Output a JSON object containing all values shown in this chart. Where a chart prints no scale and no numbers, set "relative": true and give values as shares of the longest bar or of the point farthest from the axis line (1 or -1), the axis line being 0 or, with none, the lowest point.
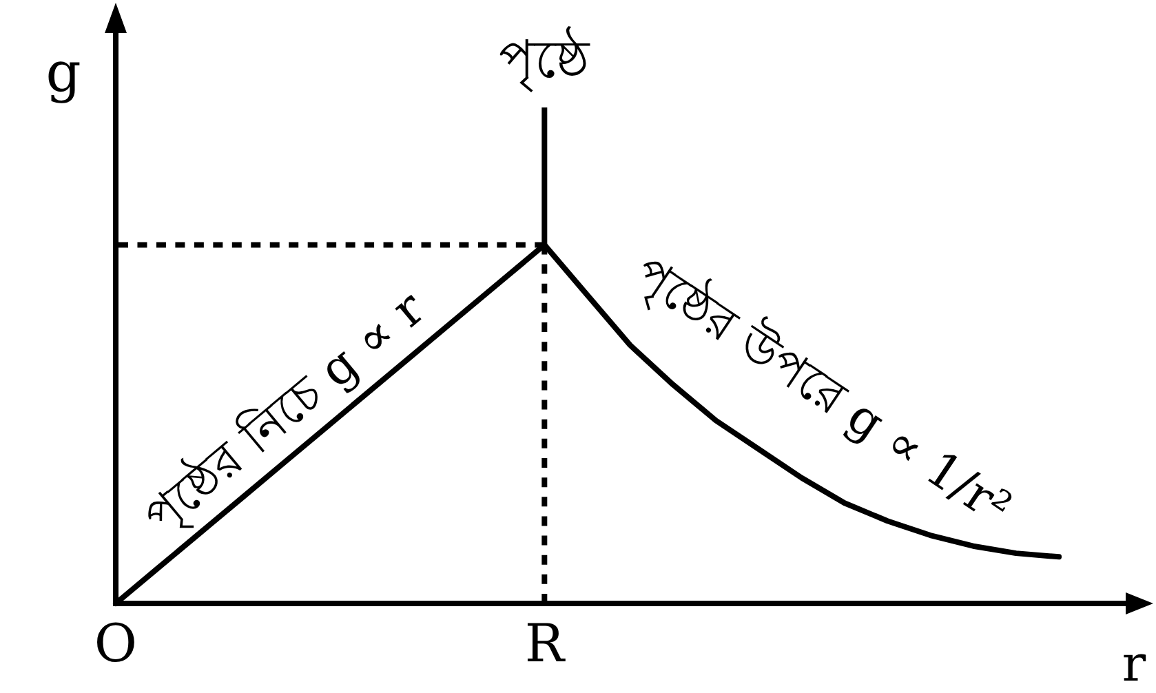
{
  "chart_data": {
    "type": "line",
    "xlabel": "r",
    "ylabel": "g",
    "relative": true,
    "categories": [
      "O",
      null,
      null,
      null,
      null,
      null,
      null,
      null,
      null,
      null,
      "R",
      null,
      null,
      null,
      null,
      null,
      null,
      null,
      null,
      null,
      null,
      null,
      null
    ],
    "series": [
      {
        "color": "#000000",
        "values": [
          0,
          0.1,
          0.2,
          0.3,
          0.4,
          0.5,
          0.6,
          0.7,
          0.8,
          0.9,
          1,
          0.86,
          0.72,
          0.61,
          0.51,
          0.43,
          0.35,
          0.28,
          0.23,
          0.19,
          0.16,
          0.14,
          0.13
        ]
      }
    ],
    "ref_lines": [
      {
        "axis": "x",
        "value": "R",
        "label": "পৃষ্ঠে",
        "line_style": "dotted"
      },
      {
        "axis": "y",
        "value": 1,
        "line_style": "dotted"
      }
    ],
    "annotations": [
      "পৃষ্ঠের নিচে g ∝ r",
      "পৃষ্ঠের উপরে g ∝ 1/r²"
    ]
  }
}
